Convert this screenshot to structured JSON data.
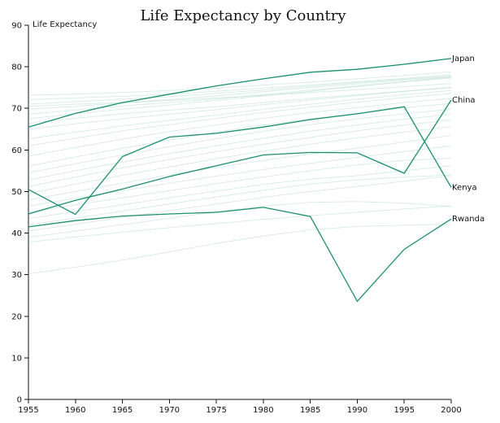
{
  "chart_data": {
    "type": "line",
    "title": "Life Expectancy by Country",
    "ylabel": "Life Expectancy",
    "xlabel": "",
    "x": [
      1955,
      1960,
      1965,
      1970,
      1975,
      1980,
      1985,
      1990,
      1995,
      2000
    ],
    "xlim": [
      1955,
      2000
    ],
    "ylim": [
      0,
      90
    ],
    "x_ticks": [
      1955,
      1960,
      1965,
      1970,
      1975,
      1980,
      1985,
      1990,
      1995,
      2000
    ],
    "y_ticks": [
      0,
      10,
      20,
      30,
      40,
      50,
      60,
      70,
      80,
      90
    ],
    "grid": false,
    "legend": "none",
    "highlight_color": "#1a8f6a",
    "background_color": "#b3dccb",
    "series": [
      {
        "name": "Japan",
        "values": [
          65.5,
          68.8,
          71.4,
          73.4,
          75.4,
          77.1,
          78.7,
          79.4,
          80.6,
          82.0
        ]
      },
      {
        "name": "China",
        "values": [
          44.6,
          47.9,
          50.6,
          53.6,
          56.2,
          58.8,
          59.4,
          59.3,
          54.4,
          72.0
        ]
      },
      {
        "name": "Kenya",
        "values": [
          50.5,
          44.5,
          58.4,
          63.1,
          64.0,
          65.5,
          67.3,
          68.7,
          70.4,
          51.0
        ]
      },
      {
        "name": "Rwanda",
        "values": [
          41.5,
          43.0,
          44.1,
          44.6,
          45.0,
          46.2,
          44.0,
          23.6,
          36.1,
          43.4
        ]
      }
    ],
    "background_series": [
      [
        73.2,
        73.4,
        73.8,
        74.3,
        74.9,
        75.6,
        76.3,
        77.1,
        77.9,
        78.8
      ],
      [
        72.1,
        72.5,
        72.9,
        73.4,
        74.1,
        74.9,
        75.6,
        76.4,
        77.2,
        78.1
      ],
      [
        71.0,
        71.6,
        72.2,
        72.8,
        73.6,
        74.4,
        75.3,
        76.2,
        77.0,
        77.8
      ],
      [
        69.8,
        70.5,
        71.3,
        72.1,
        73.0,
        74.0,
        75.0,
        75.9,
        76.8,
        77.6
      ],
      [
        70.5,
        71.0,
        71.4,
        71.9,
        72.5,
        73.1,
        73.8,
        74.5,
        75.2,
        76.0
      ],
      [
        68.6,
        69.6,
        70.6,
        71.4,
        72.3,
        73.3,
        74.4,
        75.4,
        76.4,
        77.3
      ],
      [
        67.5,
        68.7,
        69.8,
        70.8,
        71.9,
        73.0,
        74.1,
        75.3,
        76.4,
        77.5
      ],
      [
        66.4,
        67.6,
        68.7,
        69.6,
        70.4,
        71.4,
        72.4,
        73.3,
        74.1,
        75.0
      ],
      [
        65.0,
        66.3,
        67.5,
        68.6,
        69.7,
        70.9,
        72.0,
        73.1,
        74.1,
        75.1
      ],
      [
        62.7,
        64.3,
        65.8,
        67.1,
        68.4,
        69.8,
        71.0,
        72.2,
        73.3,
        74.3
      ],
      [
        61.0,
        62.8,
        64.6,
        66.1,
        67.6,
        69.0,
        70.3,
        71.5,
        72.6,
        73.6
      ],
      [
        58.5,
        60.6,
        62.6,
        64.4,
        66.0,
        67.6,
        69.0,
        70.2,
        71.4,
        72.4
      ],
      [
        56.1,
        58.3,
        60.4,
        62.4,
        64.3,
        66.0,
        67.5,
        68.8,
        70.1,
        71.2
      ],
      [
        54.5,
        56.7,
        58.8,
        60.8,
        62.7,
        64.5,
        66.1,
        67.5,
        68.7,
        69.8
      ],
      [
        52.8,
        55.0,
        57.1,
        59.1,
        61.0,
        62.8,
        64.5,
        66.0,
        67.4,
        68.6
      ],
      [
        51.2,
        53.5,
        55.7,
        57.7,
        59.6,
        61.4,
        63.0,
        64.6,
        66.0,
        67.2
      ],
      [
        49.5,
        51.8,
        53.9,
        55.9,
        57.9,
        59.7,
        61.4,
        62.9,
        64.3,
        65.6
      ],
      [
        48.0,
        50.0,
        52.0,
        54.0,
        55.8,
        57.5,
        59.0,
        60.4,
        61.9,
        63.5
      ],
      [
        46.5,
        48.4,
        50.2,
        52.0,
        53.7,
        55.3,
        56.8,
        58.2,
        59.6,
        61.0
      ],
      [
        45.0,
        46.8,
        48.5,
        50.2,
        51.9,
        53.5,
        55.0,
        56.4,
        57.5,
        58.0
      ],
      [
        43.5,
        45.2,
        46.8,
        48.5,
        50.1,
        51.7,
        53.0,
        53.8,
        55.0,
        56.2
      ],
      [
        42.0,
        43.6,
        45.3,
        47.0,
        48.7,
        50.3,
        51.8,
        52.8,
        53.5,
        54.0
      ],
      [
        40.5,
        42.1,
        43.8,
        45.4,
        47.0,
        48.6,
        50.0,
        51.2,
        52.5,
        53.8
      ],
      [
        39.0,
        40.5,
        42.0,
        43.6,
        45.1,
        46.5,
        47.4,
        47.6,
        47.2,
        46.4
      ],
      [
        37.8,
        39.1,
        40.2,
        41.3,
        42.3,
        43.3,
        44.2,
        45.0,
        45.8,
        46.5
      ],
      [
        30.2,
        31.8,
        33.5,
        35.5,
        37.5,
        39.3,
        40.8,
        41.6,
        41.9,
        42.1
      ]
    ]
  }
}
